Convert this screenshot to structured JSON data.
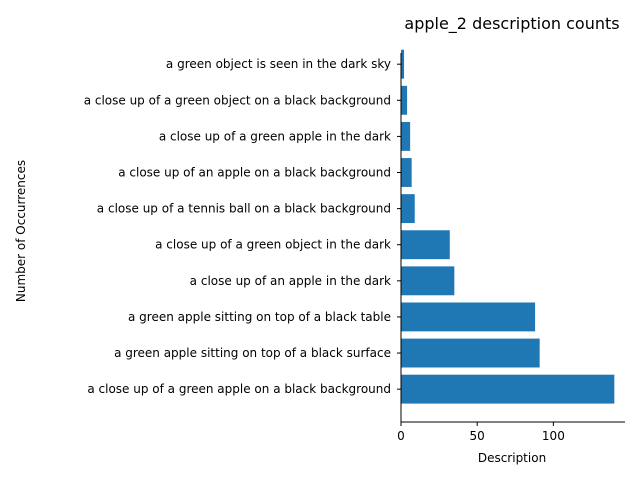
{
  "chart_data": {
    "type": "bar",
    "orientation": "horizontal",
    "title": "apple_2 description counts",
    "xlabel": "Description",
    "ylabel": "Number of Occurrences",
    "categories": [
      "a close up of a green apple on a black background",
      "a green apple sitting on top of a black surface",
      "a green apple sitting on top of a black table",
      "a close up of an apple in the dark",
      "a close up of a green object in the dark",
      "a close up of a tennis ball on a black background",
      "a close up of an apple on a black background",
      "a close up of a green apple in the dark",
      "a close up of a green object on a black background",
      "a green object is seen in the dark sky"
    ],
    "values": [
      140,
      91,
      88,
      35,
      32,
      9,
      7,
      6,
      4,
      2
    ],
    "xlim": [
      0,
      147
    ],
    "xticks": [
      0,
      50,
      100
    ],
    "xtick_labels": [
      "0",
      "50",
      "100"
    ],
    "grid": false,
    "bar_color": "#1f77b4"
  }
}
